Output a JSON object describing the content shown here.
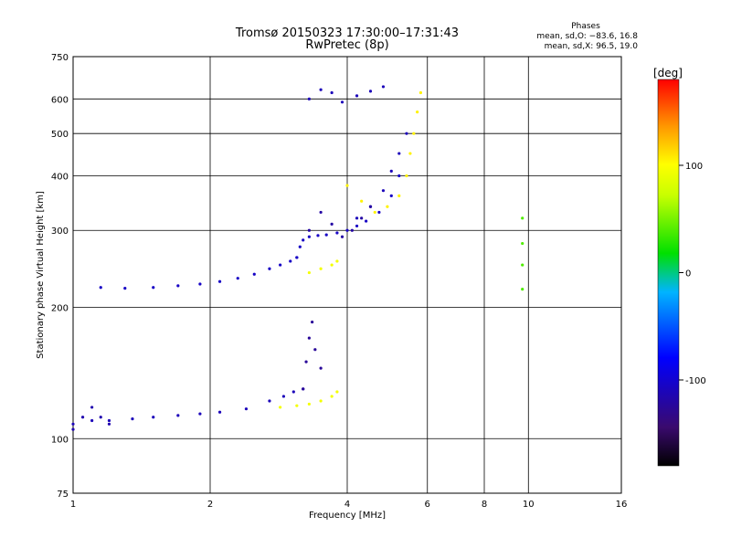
{
  "chart_data": {
    "type": "scatter",
    "title": "Tromsø 20150323 17:30:00–17:31:43",
    "subtitle": "RwPretec (8p)",
    "xlabel": "Frequency [MHz]",
    "ylabel": "Stationary phase Virtual Height [km]",
    "x_scale": "log",
    "y_scale": "log",
    "xlim": [
      1,
      16
    ],
    "ylim": [
      75,
      750
    ],
    "x_ticks": [
      1,
      2,
      4,
      6,
      8,
      10,
      16
    ],
    "x_tick_labels": [
      "1",
      "2",
      "4",
      "6",
      "8",
      "10",
      "16"
    ],
    "y_ticks": [
      75,
      100,
      200,
      300,
      400,
      500,
      600,
      750
    ],
    "y_tick_labels": [
      "75",
      "100",
      "200",
      "300",
      "400",
      "500",
      "600",
      "750"
    ],
    "grid": true,
    "legend_box": {
      "title": "Phases",
      "line1": "mean, sd,O: −83.6, 16.8",
      "line2": "mean, sd,X:  96.5, 19.0"
    },
    "colorbar": {
      "label": "[deg]",
      "range": [
        -180,
        180
      ],
      "ticks": [
        100,
        0,
        -100
      ],
      "tick_labels": [
        "100",
        "0",
        "-100"
      ]
    },
    "traces": [
      {
        "x": [
          1.0,
          1.1,
          1.2,
          1.35,
          1.5,
          1.7,
          1.9,
          2.1,
          2.4,
          2.7,
          2.9,
          3.05,
          3.2
        ],
        "y": [
          108,
          110,
          110,
          111,
          112,
          113,
          114,
          115,
          117,
          122,
          125,
          128,
          130
        ],
        "phase": -110
      },
      {
        "x": [
          1.15,
          1.3,
          1.5,
          1.7,
          1.9,
          2.1,
          2.3,
          2.5,
          2.7,
          2.85,
          3.0,
          3.1
        ],
        "y": [
          222,
          221,
          222,
          224,
          226,
          229,
          233,
          238,
          245,
          250,
          255,
          260
        ],
        "phase": -105
      },
      {
        "x": [
          3.1,
          3.15,
          3.2,
          3.3,
          3.45,
          3.6,
          3.8,
          4.0,
          4.2,
          4.4,
          4.7,
          5.0,
          5.2
        ],
        "y": [
          260,
          275,
          285,
          290,
          292,
          293,
          296,
          300,
          307,
          315,
          330,
          360,
          400
        ],
        "phase": -105
      },
      {
        "x": [
          4.2,
          4.5,
          4.8,
          5.0,
          5.2,
          5.4
        ],
        "y": [
          320,
          340,
          370,
          410,
          450,
          500
        ],
        "phase": -110
      },
      {
        "x": [
          3.2,
          3.25,
          3.3,
          3.35,
          3.4,
          3.5
        ],
        "y": [
          130,
          150,
          170,
          185,
          160,
          145
        ],
        "phase": -125
      },
      {
        "x": [
          3.3,
          3.5,
          3.7,
          3.9,
          4.1,
          4.3,
          4.5
        ],
        "y": [
          300,
          330,
          310,
          290,
          300,
          320,
          340
        ],
        "phase": -120
      },
      {
        "x": [
          3.3,
          3.5,
          3.7,
          3.9,
          4.2,
          4.5,
          4.8
        ],
        "y": [
          600,
          630,
          620,
          590,
          610,
          625,
          640
        ],
        "phase": -110
      },
      {
        "x": [
          2.85,
          3.1,
          3.3,
          3.5,
          3.7,
          3.8
        ],
        "y": [
          118,
          119,
          120,
          122,
          125,
          128
        ],
        "phase": 95
      },
      {
        "x": [
          3.3,
          3.5,
          3.7,
          3.8
        ],
        "y": [
          240,
          245,
          250,
          255
        ],
        "phase": 95
      },
      {
        "x": [
          4.0,
          4.3,
          4.6,
          4.9,
          5.2,
          5.4,
          5.5,
          5.6,
          5.7,
          5.8
        ],
        "y": [
          380,
          350,
          330,
          340,
          360,
          400,
          450,
          500,
          560,
          620
        ],
        "phase": 105
      },
      {
        "x": [
          9.7,
          9.7,
          9.7,
          9.7
        ],
        "y": [
          220,
          250,
          280,
          320
        ],
        "phase": 40
      },
      {
        "x": [
          1.0,
          1.05,
          1.1,
          1.15,
          1.2
        ],
        "y": [
          105,
          112,
          118,
          112,
          108
        ],
        "phase": -115
      }
    ]
  }
}
